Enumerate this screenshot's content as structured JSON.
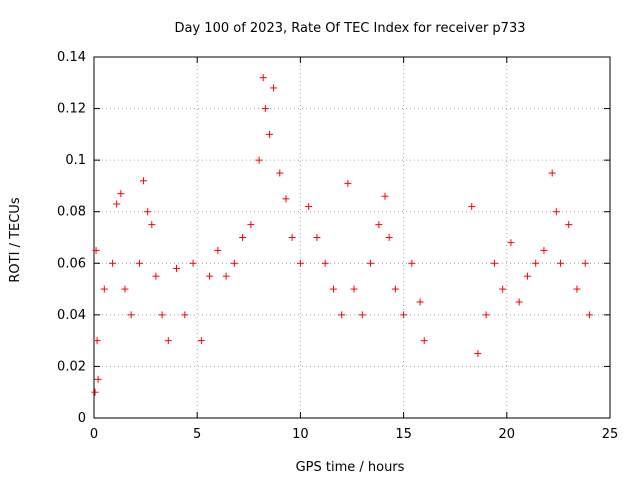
{
  "chart_data": {
    "type": "scatter",
    "title": "Day 100 of 2023, Rate Of TEC Index for receiver p733",
    "xlabel": "GPS time / hours",
    "ylabel": "ROTI / TECUs",
    "xlim": [
      0,
      25
    ],
    "ylim": [
      0,
      0.14
    ],
    "xticks": [
      "0",
      "5",
      "10",
      "15",
      "20",
      "25"
    ],
    "yticks": [
      "0",
      "0.02",
      "0.04",
      "0.06",
      "0.08",
      "0.1",
      "0.12",
      "0.14"
    ],
    "grid": true,
    "marker": "+",
    "color": "#ff0000",
    "data_gap_hours": [
      16.1,
      18.2
    ],
    "series": [
      {
        "x": [
          0.05,
          0.1,
          0.15,
          0.2,
          0.5,
          0.9,
          1.1,
          1.3,
          1.5,
          1.8,
          2.2,
          2.4,
          2.6,
          2.8,
          3.0,
          3.3,
          3.6,
          4.0,
          4.4,
          4.8,
          5.2,
          5.6,
          6.0,
          6.4,
          6.8,
          7.2,
          7.6,
          8.0,
          8.2,
          8.3,
          8.5,
          8.7,
          9.0,
          9.3,
          9.6,
          10.0,
          10.4,
          10.8,
          11.2,
          11.6,
          12.0,
          12.3,
          12.6,
          13.0,
          13.4,
          13.8,
          14.1,
          14.3,
          14.6,
          15.0,
          15.4,
          15.8,
          16.0,
          18.3,
          18.6,
          19.0,
          19.4,
          19.8,
          20.2,
          20.6,
          21.0,
          21.4,
          21.8,
          22.2,
          22.4,
          22.6,
          23.0,
          23.4,
          23.8,
          24.0
        ],
        "y": [
          0.01,
          0.065,
          0.03,
          0.015,
          0.05,
          0.06,
          0.083,
          0.087,
          0.05,
          0.04,
          0.06,
          0.092,
          0.08,
          0.075,
          0.055,
          0.04,
          0.03,
          0.058,
          0.04,
          0.06,
          0.03,
          0.055,
          0.065,
          0.055,
          0.06,
          0.07,
          0.075,
          0.1,
          0.132,
          0.12,
          0.11,
          0.128,
          0.095,
          0.085,
          0.07,
          0.06,
          0.082,
          0.07,
          0.06,
          0.05,
          0.04,
          0.091,
          0.05,
          0.04,
          0.06,
          0.075,
          0.086,
          0.07,
          0.05,
          0.04,
          0.06,
          0.045,
          0.03,
          0.082,
          0.025,
          0.04,
          0.06,
          0.05,
          0.068,
          0.045,
          0.055,
          0.06,
          0.065,
          0.095,
          0.08,
          0.06,
          0.075,
          0.05,
          0.06,
          0.04
        ]
      }
    ]
  }
}
